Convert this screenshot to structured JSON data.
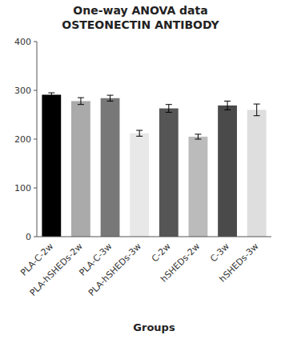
{
  "chart_data": {
    "type": "bar",
    "title": "One-way ANOVA data",
    "subtitle": "OSTEONECTIN ANTIBODY",
    "x_label": "Groups",
    "categories": [
      "PLA-C-2w",
      "PLA-hSHEDs-2w",
      "PLA-C-3w",
      "PLA-hSHEDs-3w",
      "C-2w",
      "hSHEDs-2w",
      "C-3w",
      "hSHEDs-3w"
    ],
    "values": [
      291,
      278,
      284,
      212,
      263,
      205,
      269,
      260
    ],
    "errors": [
      4,
      7,
      6,
      6,
      8,
      5,
      9,
      12
    ],
    "colors": [
      "#000000",
      "#aaaaaa",
      "#787878",
      "#e8e8e8",
      "#555555",
      "#bbbbbb",
      "#4a4a4a",
      "#dedede"
    ],
    "ylim": [
      0,
      400
    ],
    "yticks": [
      0,
      100,
      200,
      300,
      400
    ],
    "grid": false
  }
}
